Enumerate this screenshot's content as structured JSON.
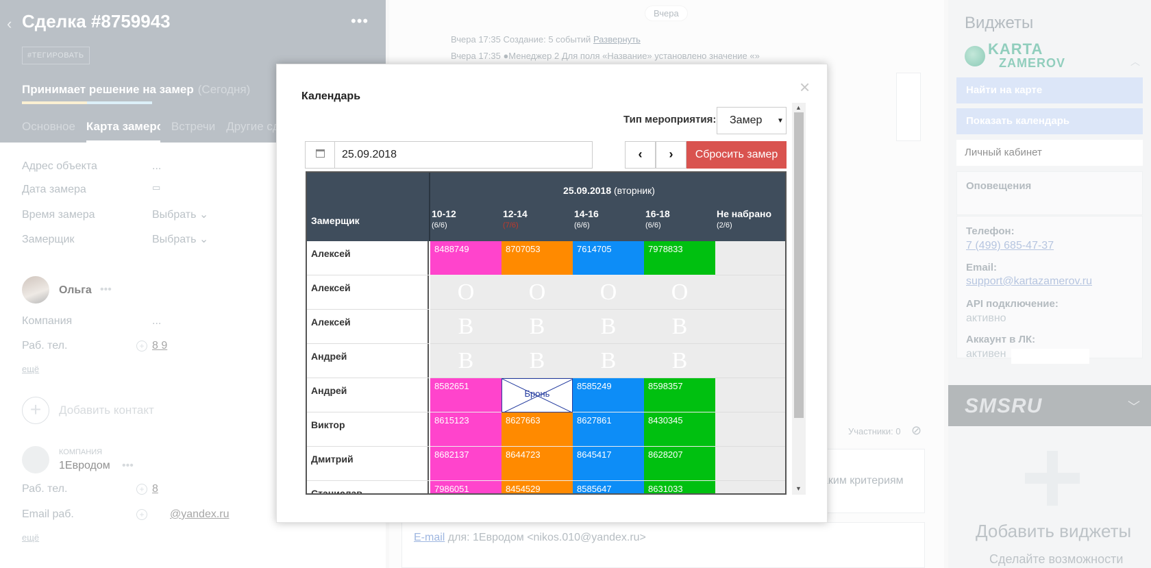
{
  "deal": {
    "title": "Сделка #8759943",
    "tag_button": "#ТЕГИРОВАТЬ",
    "stage": "Принимает решение на замер",
    "stage_when": "(Сегодня)",
    "tabs": [
      "Основное",
      "Карта замеров",
      "Встречи",
      "Другие сд"
    ],
    "fields": [
      {
        "label": "Адрес объекта",
        "value": "..."
      },
      {
        "label": "Дата замера",
        "value": ""
      },
      {
        "label": "Время замера",
        "value": "Выбрать"
      },
      {
        "label": "Замерщик",
        "value": "Выбрать"
      }
    ],
    "contact": {
      "name": "Ольга",
      "company_label": "Компания",
      "company_value": "...",
      "phone_label": "Раб. тел.",
      "phone_value": "8 9",
      "more": "ещё"
    },
    "add_contact": "Добавить контакт",
    "company": {
      "type": "КОМПАНИЯ",
      "name": "1Евродом",
      "phone_label": "Раб. тел.",
      "phone_value": "8",
      "email_label": "Email раб.",
      "email_value": "@yandex.ru",
      "more": "ещё"
    }
  },
  "feed": {
    "date_pill": "Вчера",
    "line1": "Вчера 17:35 Создание: 5 событий",
    "line1_link": "Развернуть",
    "line2": "Вчера 17:35 ●Менеджер 2  Для поля «Название» установлено значение «»",
    "participants": "Участники: 0",
    "criteria_tail": "аким критериям",
    "email_link": "E-mail",
    "email_rest": " для: 1Евродом <nikos.010@yandex.ru>"
  },
  "widgets": {
    "title": "Виджеты",
    "logo_line1": "KARTA",
    "logo_line2": "ZAMEROV",
    "btn_map": "Найти на карте",
    "btn_calendar": "Показать календарь",
    "cabinet": "Личный кабинет",
    "notifications": "Оповещения",
    "phone_label": "Телефон:",
    "phone": "7 (499) 685-47-37",
    "email_label": "Email:",
    "email": "support@kartazamerov.ru",
    "api_label": "API подключение:",
    "api_value": "активно",
    "account_label": "Аккаунт в ЛК:",
    "account_value": "активен",
    "sms": "SMSRU",
    "add_widgets": "Добавить виджеты",
    "add_widgets_sub": "Сделайте возможности"
  },
  "modal": {
    "title": "Календарь",
    "close": "×",
    "type_label": "Тип мероприятия:",
    "type_value": "Замер",
    "date_value": "25.09.2018",
    "prev": "‹",
    "next": "›",
    "reset": "Сбросить замер"
  },
  "calendar": {
    "date": "25.09.2018",
    "weekday": "(вторник)",
    "col_name": "Замерщик",
    "slots": [
      {
        "label": "10-12",
        "cap": "(6/6)"
      },
      {
        "label": "12-14",
        "cap": "(7/6)"
      },
      {
        "label": "14-16",
        "cap": "(6/6)"
      },
      {
        "label": "16-18",
        "cap": "(6/6)"
      },
      {
        "label": "Не набрано",
        "cap": "(2/6)"
      }
    ],
    "rows": [
      {
        "name": "Алексей",
        "cells": [
          "8488749",
          "8707053",
          "7614705",
          "7978833",
          ""
        ],
        "kind": "color"
      },
      {
        "name": "Алексей",
        "cells": [
          "О",
          "О",
          "О",
          "О",
          ""
        ],
        "kind": "letter"
      },
      {
        "name": "Алексей",
        "cells": [
          "В",
          "В",
          "В",
          "В",
          ""
        ],
        "kind": "letter"
      },
      {
        "name": "Андрей",
        "cells": [
          "В",
          "В",
          "В",
          "В",
          ""
        ],
        "kind": "letter"
      },
      {
        "name": "Андрей",
        "cells": [
          "8582651",
          "Бронь",
          "8585249",
          "8598357",
          ""
        ],
        "kind": "color"
      },
      {
        "name": "Виктор",
        "cells": [
          "8615123",
          "8627663",
          "8627861",
          "8430345",
          ""
        ],
        "kind": "color"
      },
      {
        "name": "Дмитрий",
        "cells": [
          "8682137",
          "8644723",
          "8645417",
          "8628207",
          ""
        ],
        "kind": "color"
      },
      {
        "name": "Станислав",
        "cells": [
          "7986051",
          "8454529",
          "8585647",
          "8631033",
          ""
        ],
        "kind": "color"
      }
    ],
    "slot_colors": [
      "#ff44cc",
      "#ff8a00",
      "#0d8df7",
      "#00c010"
    ]
  }
}
